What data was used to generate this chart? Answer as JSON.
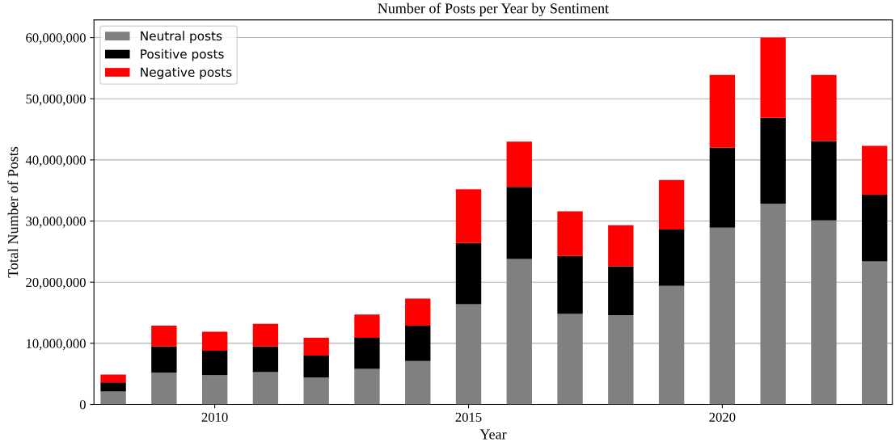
{
  "chart_data": {
    "type": "bar",
    "title": "Number of Posts per Year by Sentiment",
    "xlabel": "Year",
    "ylabel": "Total Number of Posts",
    "x": [
      2008,
      2009,
      2010,
      2011,
      2012,
      2013,
      2014,
      2015,
      2016,
      2017,
      2018,
      2019,
      2020,
      2021,
      2022,
      2023
    ],
    "stacked": true,
    "series": [
      {
        "name": "Neutral posts",
        "color": "#808080",
        "values": [
          2100000,
          5200000,
          4800000,
          5300000,
          4400000,
          5800000,
          7100000,
          16400000,
          23800000,
          14800000,
          14600000,
          19400000,
          28900000,
          32800000,
          30100000,
          23400000
        ]
      },
      {
        "name": "Positive posts",
        "color": "#000000",
        "values": [
          1500000,
          4300000,
          4000000,
          4200000,
          3600000,
          5100000,
          5800000,
          10000000,
          11800000,
          9500000,
          8000000,
          9200000,
          13100000,
          14100000,
          13000000,
          10900000
        ]
      },
      {
        "name": "Negative posts",
        "color": "#ff0000",
        "values": [
          1300000,
          3400000,
          3100000,
          3700000,
          2900000,
          3800000,
          4400000,
          8800000,
          7400000,
          7300000,
          6700000,
          8100000,
          11900000,
          13100000,
          10800000,
          8000000
        ]
      }
    ],
    "xlim": [
      2007.62,
      2023.35
    ],
    "xticks": [
      2010,
      2015,
      2020
    ],
    "ylim": [
      0,
      62900000
    ],
    "yticks": [
      {
        "value": 0,
        "label": "0"
      },
      {
        "value": 10000000,
        "label": "10,000,000"
      },
      {
        "value": 20000000,
        "label": "20,000,000"
      },
      {
        "value": 30000000,
        "label": "30,000,000"
      },
      {
        "value": 40000000,
        "label": "40,000,000"
      },
      {
        "value": 50000000,
        "label": "50,000,000"
      },
      {
        "value": 60000000,
        "label": "60,000,000"
      }
    ],
    "grid": "y",
    "legend": "top left"
  }
}
